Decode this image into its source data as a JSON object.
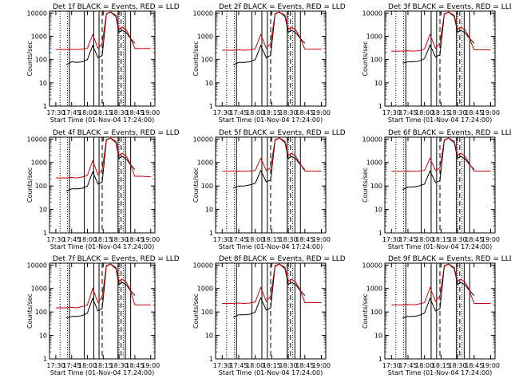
{
  "figure": {
    "background": "#ffffff",
    "events_color": "#000000",
    "lld_color": "#cc0000"
  },
  "shared": {
    "xlabel": "Start Time (01-Nov-04 17:24:00)",
    "ylabel": "Counts/sec",
    "x_ticks": [
      "17:30",
      "17:45",
      "18:00",
      "18:15",
      "18:30",
      "18:45",
      "19:00"
    ],
    "y_ticks": [
      "1",
      "10",
      "100",
      "1000",
      "10000"
    ]
  },
  "chart_data": [
    {
      "type": "line",
      "title": "Det 1f BLACK = Events, RED = LLD",
      "xlabel": "Start Time (01-Nov-04 17:24:00)",
      "ylabel": "Counts/sec",
      "y_scale": "log",
      "ylim": [
        1,
        12000
      ],
      "xlim": [
        "17:24",
        "19:04"
      ],
      "x": [
        "17:30",
        "17:40",
        "17:45",
        "17:50",
        "17:55",
        "18:00",
        "18:05",
        "18:10",
        "18:14",
        "18:18",
        "18:22",
        "18:27",
        "18:30",
        "18:33",
        "18:37",
        "18:40",
        "18:45",
        "18:50",
        "19:00"
      ],
      "series": [
        {
          "name": "Events",
          "values": [
            null,
            60,
            80,
            75,
            80,
            100,
            400,
            120,
            150,
            9000,
            11000,
            7000,
            1500,
            1800,
            1400,
            900,
            500,
            null,
            null
          ]
        },
        {
          "name": "LLD",
          "values": [
            270,
            270,
            275,
            270,
            280,
            300,
            1200,
            300,
            500,
            9500,
            11000,
            8000,
            2000,
            2500,
            1800,
            1000,
            300,
            300,
            300
          ]
        }
      ]
    },
    {
      "type": "line",
      "title": "Det 2f BLACK = Events, RED = LLD",
      "xlabel": "Start Time (01-Nov-04 17:24:00)",
      "ylabel": "Counts/sec",
      "y_scale": "log",
      "ylim": [
        1,
        12000
      ],
      "xlim": [
        "17:24",
        "19:04"
      ],
      "x": [
        "17:30",
        "17:40",
        "17:45",
        "17:50",
        "17:55",
        "18:00",
        "18:05",
        "18:10",
        "18:14",
        "18:18",
        "18:22",
        "18:27",
        "18:30",
        "18:33",
        "18:37",
        "18:40",
        "18:45",
        "18:50",
        "19:00"
      ],
      "series": [
        {
          "name": "Events",
          "values": [
            null,
            60,
            75,
            75,
            80,
            100,
            400,
            120,
            150,
            9000,
            11000,
            7000,
            1500,
            1800,
            1400,
            900,
            500,
            null,
            null
          ]
        },
        {
          "name": "LLD",
          "values": [
            250,
            250,
            260,
            250,
            260,
            290,
            1200,
            300,
            500,
            9500,
            11000,
            8000,
            2000,
            2500,
            1800,
            1000,
            280,
            280,
            280
          ]
        }
      ]
    },
    {
      "type": "line",
      "title": "Det 3f BLACK = Events, RED = LLD",
      "xlabel": "Start Time (01-Nov-04 17:24:00)",
      "ylabel": "Counts/sec",
      "y_scale": "log",
      "ylim": [
        1,
        12000
      ],
      "xlim": [
        "17:24",
        "19:04"
      ],
      "x": [
        "17:30",
        "17:40",
        "17:45",
        "17:50",
        "17:55",
        "18:00",
        "18:05",
        "18:10",
        "18:14",
        "18:18",
        "18:22",
        "18:27",
        "18:30",
        "18:33",
        "18:37",
        "18:40",
        "18:45",
        "18:50",
        "19:00"
      ],
      "series": [
        {
          "name": "Events",
          "values": [
            null,
            70,
            80,
            80,
            85,
            110,
            420,
            130,
            160,
            9000,
            11000,
            7000,
            1500,
            1800,
            1400,
            900,
            500,
            null,
            null
          ]
        },
        {
          "name": "LLD",
          "values": [
            230,
            230,
            240,
            230,
            240,
            280,
            1200,
            300,
            500,
            9500,
            11000,
            8000,
            2000,
            2500,
            1800,
            1000,
            260,
            260,
            260
          ]
        }
      ]
    },
    {
      "type": "line",
      "title": "Det 4f BLACK = Events, RED = LLD",
      "xlabel": "Start Time (01-Nov-04 17:24:00)",
      "ylabel": "Counts/sec",
      "y_scale": "log",
      "ylim": [
        1,
        12000
      ],
      "xlim": [
        "17:24",
        "19:04"
      ],
      "x": [
        "17:30",
        "17:40",
        "17:45",
        "17:50",
        "17:55",
        "18:00",
        "18:05",
        "18:10",
        "18:14",
        "18:18",
        "18:22",
        "18:27",
        "18:30",
        "18:33",
        "18:37",
        "18:40",
        "18:45",
        "18:50",
        "19:00"
      ],
      "series": [
        {
          "name": "Events",
          "values": [
            null,
            60,
            75,
            75,
            80,
            100,
            400,
            120,
            150,
            9000,
            11000,
            7000,
            1500,
            1800,
            1400,
            900,
            500,
            null,
            null
          ]
        },
        {
          "name": "LLD",
          "values": [
            220,
            220,
            230,
            220,
            240,
            280,
            1200,
            300,
            500,
            9500,
            11000,
            8000,
            2000,
            2500,
            1800,
            1000,
            260,
            260,
            250
          ]
        }
      ]
    },
    {
      "type": "line",
      "title": "Det 5f BLACK = Events, RED = LLD",
      "xlabel": "Start Time (01-Nov-04 17:24:00)",
      "ylabel": "Counts/sec",
      "y_scale": "log",
      "ylim": [
        1,
        12000
      ],
      "xlim": [
        "17:24",
        "19:04"
      ],
      "x": [
        "17:30",
        "17:40",
        "17:45",
        "17:50",
        "17:55",
        "18:00",
        "18:05",
        "18:10",
        "18:14",
        "18:18",
        "18:22",
        "18:27",
        "18:30",
        "18:33",
        "18:37",
        "18:40",
        "18:45",
        "18:50",
        "19:00"
      ],
      "series": [
        {
          "name": "Events",
          "values": [
            null,
            80,
            100,
            100,
            110,
            130,
            450,
            150,
            180,
            9000,
            11000,
            7000,
            1500,
            1800,
            1400,
            900,
            500,
            null,
            null
          ]
        },
        {
          "name": "LLD",
          "values": [
            420,
            420,
            430,
            420,
            430,
            460,
            1500,
            450,
            600,
            9500,
            11000,
            8000,
            2000,
            2500,
            1800,
            1000,
            430,
            430,
            430
          ]
        }
      ]
    },
    {
      "type": "line",
      "title": "Det 6f BLACK = Events, RED = LLD",
      "xlabel": "Start Time (01-Nov-04 17:24:00)",
      "ylabel": "Counts/sec",
      "y_scale": "log",
      "ylim": [
        1,
        12000
      ],
      "xlim": [
        "17:24",
        "19:04"
      ],
      "x": [
        "17:30",
        "17:40",
        "17:45",
        "17:50",
        "17:55",
        "18:00",
        "18:05",
        "18:10",
        "18:14",
        "18:18",
        "18:22",
        "18:27",
        "18:30",
        "18:33",
        "18:37",
        "18:40",
        "18:45",
        "18:50",
        "19:00"
      ],
      "series": [
        {
          "name": "Events",
          "values": [
            null,
            70,
            90,
            90,
            100,
            120,
            430,
            140,
            170,
            9000,
            11000,
            7000,
            1500,
            1800,
            1400,
            900,
            500,
            null,
            null
          ]
        },
        {
          "name": "LLD",
          "values": [
            420,
            420,
            430,
            420,
            430,
            460,
            1500,
            450,
            600,
            9500,
            11000,
            8000,
            2000,
            2500,
            1800,
            1000,
            430,
            430,
            430
          ]
        }
      ]
    },
    {
      "type": "line",
      "title": "Det 7f BLACK = Events, RED = LLD",
      "xlabel": "Start Time (01-Nov-04 17:24:00)",
      "ylabel": "Counts/sec",
      "y_scale": "log",
      "ylim": [
        1,
        12000
      ],
      "xlim": [
        "17:24",
        "19:04"
      ],
      "x": [
        "17:30",
        "17:40",
        "17:45",
        "17:50",
        "17:55",
        "18:00",
        "18:05",
        "18:10",
        "18:14",
        "18:18",
        "18:22",
        "18:27",
        "18:30",
        "18:33",
        "18:37",
        "18:40",
        "18:45",
        "18:50",
        "19:00"
      ],
      "series": [
        {
          "name": "Events",
          "values": [
            null,
            55,
            65,
            65,
            70,
            90,
            380,
            110,
            140,
            9000,
            11000,
            7000,
            1500,
            1800,
            1400,
            900,
            500,
            null,
            null
          ]
        },
        {
          "name": "LLD",
          "values": [
            150,
            150,
            160,
            150,
            170,
            200,
            1000,
            250,
            450,
            9500,
            11000,
            8000,
            2000,
            2500,
            1800,
            1000,
            200,
            200,
            200
          ]
        }
      ]
    },
    {
      "type": "line",
      "title": "Det 8f BLACK = Events, RED = LLD",
      "xlabel": "Start Time (01-Nov-04 17:24:00)",
      "ylabel": "Counts/sec",
      "y_scale": "log",
      "ylim": [
        1,
        12000
      ],
      "xlim": [
        "17:24",
        "19:04"
      ],
      "x": [
        "17:30",
        "17:40",
        "17:45",
        "17:50",
        "17:55",
        "18:00",
        "18:05",
        "18:10",
        "18:14",
        "18:18",
        "18:22",
        "18:27",
        "18:30",
        "18:33",
        "18:37",
        "18:40",
        "18:45",
        "18:50",
        "19:00"
      ],
      "series": [
        {
          "name": "Events",
          "values": [
            null,
            60,
            75,
            75,
            80,
            100,
            400,
            120,
            150,
            9000,
            11000,
            7000,
            1500,
            1800,
            1400,
            900,
            500,
            null,
            null
          ]
        },
        {
          "name": "LLD",
          "values": [
            230,
            230,
            240,
            230,
            240,
            270,
            1100,
            280,
            480,
            9500,
            11000,
            8000,
            2000,
            2500,
            1800,
            1000,
            250,
            250,
            250
          ]
        }
      ]
    },
    {
      "type": "line",
      "title": "Det 9f BLACK = Events, RED = LLD",
      "xlabel": "Start Time (01-Nov-04 17:24:00)",
      "ylabel": "Counts/sec",
      "y_scale": "log",
      "ylim": [
        1,
        12000
      ],
      "xlim": [
        "17:24",
        "19:04"
      ],
      "x": [
        "17:30",
        "17:40",
        "17:45",
        "17:50",
        "17:55",
        "18:00",
        "18:05",
        "18:10",
        "18:14",
        "18:18",
        "18:22",
        "18:27",
        "18:30",
        "18:33",
        "18:37",
        "18:40",
        "18:45",
        "18:50",
        "19:00"
      ],
      "series": [
        {
          "name": "Events",
          "values": [
            null,
            55,
            65,
            65,
            70,
            90,
            380,
            110,
            140,
            9000,
            11000,
            7000,
            1500,
            1800,
            1400,
            900,
            500,
            null,
            null
          ]
        },
        {
          "name": "LLD",
          "values": [
            200,
            200,
            210,
            200,
            220,
            250,
            1100,
            280,
            480,
            9500,
            11000,
            8000,
            2000,
            2500,
            1800,
            1000,
            230,
            230,
            230
          ]
        }
      ]
    }
  ]
}
